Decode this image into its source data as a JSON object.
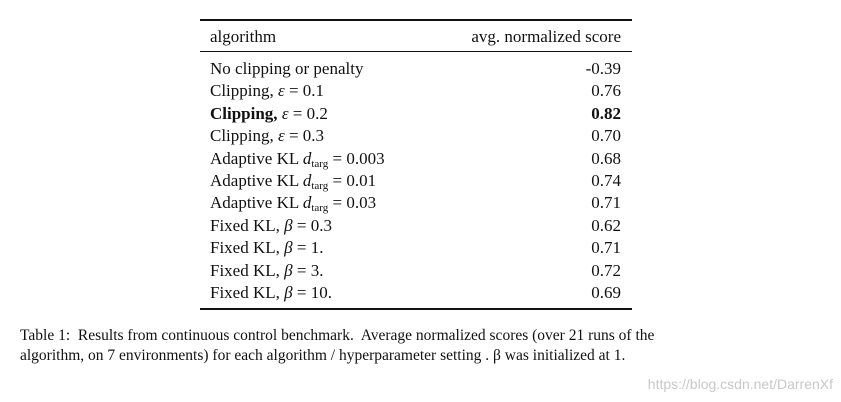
{
  "table": {
    "header": [
      "algorithm",
      "avg. normalized score"
    ],
    "rows": [
      {
        "prefix": "No clipping or penalty",
        "score": "-0.39"
      },
      {
        "prefix": "Clipping, ",
        "symbol": "ε",
        "rhs": " = 0.1",
        "score": "0.76"
      },
      {
        "prefix": "Clipping, ",
        "symbol": "ε",
        "rhs": " = 0.2",
        "score": "0.82",
        "bold": true
      },
      {
        "prefix": "Clipping, ",
        "symbol": "ε",
        "rhs": " = 0.3",
        "score": "0.70"
      },
      {
        "prefix": "Adaptive KL ",
        "symbol": "d",
        "subscript": "targ",
        "rhs": " = 0.003",
        "score": "0.68"
      },
      {
        "prefix": "Adaptive KL ",
        "symbol": "d",
        "subscript": "targ",
        "rhs": " = 0.01",
        "score": "0.74"
      },
      {
        "prefix": "Adaptive KL ",
        "symbol": "d",
        "subscript": "targ",
        "rhs": " = 0.03",
        "score": "0.71"
      },
      {
        "prefix": "Fixed KL, ",
        "symbol": "β",
        "rhs": " = 0.3",
        "score": "0.62"
      },
      {
        "prefix": "Fixed KL, ",
        "symbol": "β",
        "rhs": " = 1.",
        "score": "0.71"
      },
      {
        "prefix": "Fixed KL, ",
        "symbol": "β",
        "rhs": " = 3.",
        "score": "0.72"
      },
      {
        "prefix": "Fixed KL, ",
        "symbol": "β",
        "rhs": " = 10.",
        "score": "0.69"
      }
    ]
  },
  "caption": [
    "Table 1:  Results from continuous control benchmark.  Average normalized scores (over 21 runs of the",
    "algorithm, on 7 environments) for each algorithm / hyperparameter setting . β was initialized at 1."
  ],
  "watermark": "https://blog.csdn.net/DarrenXf"
}
